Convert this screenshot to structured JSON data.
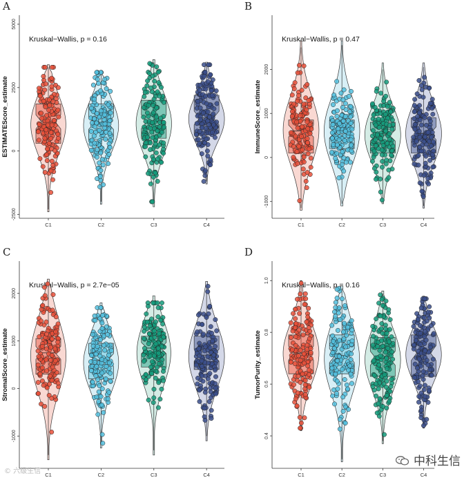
{
  "figure": {
    "categories": [
      "C1",
      "C2",
      "C3",
      "C4"
    ],
    "colors": {
      "fills": [
        "#e8503a",
        "#53c0de",
        "#159c7c",
        "#3b4f8c"
      ],
      "light": [
        "#f7cbc3",
        "#cbe9f3",
        "#c5e6dc",
        "#c6cbe0"
      ]
    }
  },
  "watermarks": {
    "right": "中科生信",
    "left": "© 六级生信"
  },
  "chart_data": [
    {
      "panel": "A",
      "type": "violin-box",
      "ylabel": "ESTIMATEScore_estimate",
      "ylim": [
        -2600,
        5300
      ],
      "yticks": [
        -2500,
        0,
        2500,
        5000
      ],
      "ytick_labels": [
        "-2500",
        "0",
        "2500",
        "5000"
      ],
      "annotation": "Kruskal−Wallis, p = 0.16",
      "categories": [
        "C1",
        "C2",
        "C3",
        "C4"
      ],
      "series": [
        {
          "name": "C1",
          "min": -2300,
          "q1": 300,
          "median": 1150,
          "q3": 1850,
          "max": 3300,
          "violin_min": -2400,
          "violin_max": 3400
        },
        {
          "name": "C2",
          "min": -2000,
          "q1": 450,
          "median": 1100,
          "q3": 1850,
          "max": 3100,
          "violin_min": -2100,
          "violin_max": 3150
        },
        {
          "name": "C3",
          "min": -2000,
          "q1": 500,
          "median": 1150,
          "q3": 2000,
          "max": 3500,
          "violin_min": -2200,
          "violin_max": 3600
        },
        {
          "name": "C4",
          "min": -1200,
          "q1": 700,
          "median": 1300,
          "q3": 2200,
          "max": 3400,
          "violin_min": -1300,
          "violin_max": 3500
        }
      ]
    },
    {
      "panel": "B",
      "type": "violin-box",
      "ylabel": "ImmuneScore_estimate",
      "ylim": [
        -1350,
        3200
      ],
      "yticks": [
        -1000,
        0,
        1000,
        2000
      ],
      "ytick_labels": [
        "-1000",
        "0",
        "1000",
        "2000"
      ],
      "annotation": "Kruskal−Wallis, p = 0.47",
      "categories": [
        "C1",
        "C2",
        "C3",
        "C4"
      ],
      "series": [
        {
          "name": "C1",
          "min": -1150,
          "q1": 100,
          "median": 600,
          "q3": 850,
          "max": 2500,
          "violin_min": -1200,
          "violin_max": 2650
        },
        {
          "name": "C2",
          "min": -1050,
          "q1": 200,
          "median": 560,
          "q3": 850,
          "max": 2550,
          "violin_min": -1100,
          "violin_max": 2650
        },
        {
          "name": "C3",
          "min": -1000,
          "q1": 100,
          "median": 500,
          "q3": 800,
          "max": 2000,
          "violin_min": -1050,
          "violin_max": 2150
        },
        {
          "name": "C4",
          "min": -1100,
          "q1": 100,
          "median": 550,
          "q3": 900,
          "max": 2050,
          "violin_min": -1150,
          "violin_max": 2150
        }
      ]
    },
    {
      "panel": "C",
      "type": "violin-box",
      "ylabel": "StromalScore_estimate",
      "ylim": [
        -1650,
        2650
      ],
      "yticks": [
        -1000,
        0,
        1000,
        2000
      ],
      "ytick_labels": [
        "-1000",
        "0",
        "1000",
        "2000"
      ],
      "annotation": "Kruskal−Wallis, p = 2.7e−05",
      "categories": [
        "C1",
        "C2",
        "C3",
        "C4"
      ],
      "series": [
        {
          "name": "C1",
          "min": -1400,
          "q1": 300,
          "median": 750,
          "q3": 1050,
          "max": 2200,
          "violin_min": -1500,
          "violin_max": 2300
        },
        {
          "name": "C2",
          "min": -1150,
          "q1": 200,
          "median": 600,
          "q3": 950,
          "max": 1700,
          "violin_min": -1250,
          "violin_max": 1800
        },
        {
          "name": "C3",
          "min": -1300,
          "q1": 450,
          "median": 850,
          "q3": 1100,
          "max": 1800,
          "violin_min": -1400,
          "violin_max": 1950
        },
        {
          "name": "C4",
          "min": -1000,
          "q1": 400,
          "median": 700,
          "q3": 1100,
          "max": 2150,
          "violin_min": -1100,
          "violin_max": 2250
        }
      ]
    },
    {
      "panel": "D",
      "type": "violin-box",
      "ylabel": "TumorPurity_estimate",
      "ylim": [
        0.28,
        1.07
      ],
      "yticks": [
        0.4,
        0.6,
        0.8,
        1.0
      ],
      "ytick_labels": [
        "0.4",
        "0.6",
        "0.8",
        "1.0"
      ],
      "annotation": "Kruskal−Wallis, p = 0.16",
      "categories": [
        "C1",
        "C2",
        "C3",
        "C4"
      ],
      "series": [
        {
          "name": "C1",
          "min": 0.43,
          "q1": 0.64,
          "median": 0.72,
          "q3": 0.79,
          "max": 0.99,
          "violin_min": 0.42,
          "violin_max": 1.0
        },
        {
          "name": "C2",
          "min": 0.31,
          "q1": 0.64,
          "median": 0.71,
          "q3": 0.79,
          "max": 0.97,
          "violin_min": 0.3,
          "violin_max": 0.98
        },
        {
          "name": "C3",
          "min": 0.38,
          "q1": 0.63,
          "median": 0.7,
          "q3": 0.78,
          "max": 0.95,
          "violin_min": 0.37,
          "violin_max": 0.96
        },
        {
          "name": "C4",
          "min": 0.44,
          "q1": 0.63,
          "median": 0.72,
          "q3": 0.79,
          "max": 0.93,
          "violin_min": 0.43,
          "violin_max": 0.94
        }
      ]
    }
  ]
}
